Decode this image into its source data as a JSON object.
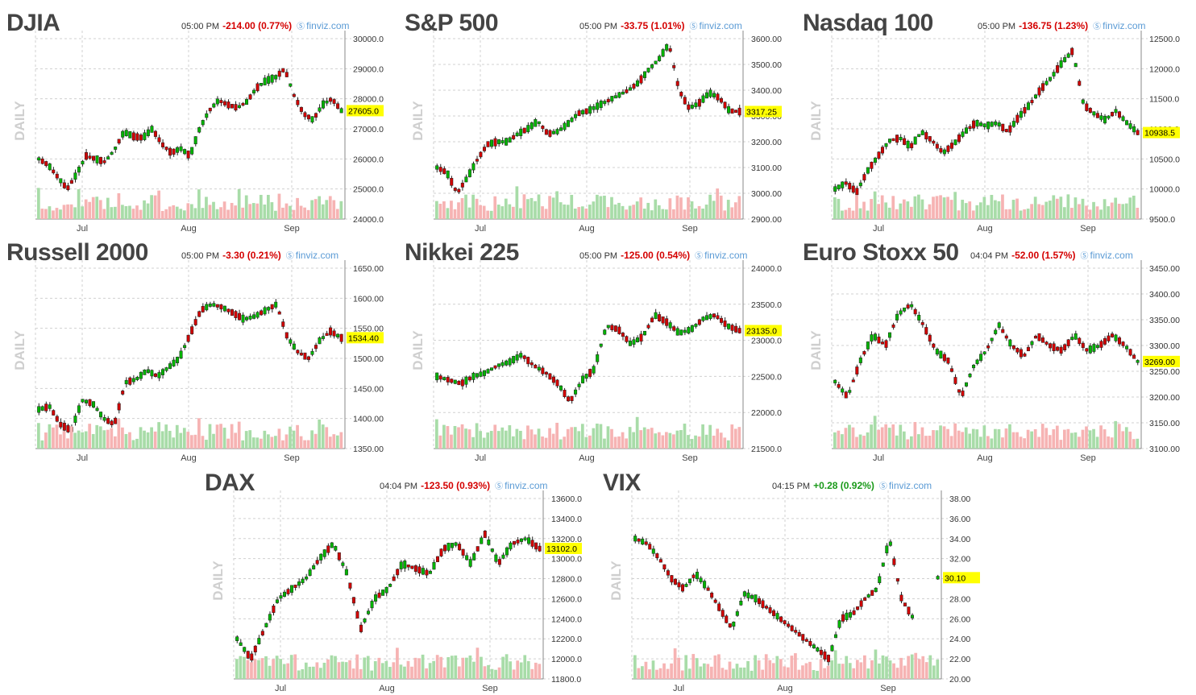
{
  "colors": {
    "up": "#00b400",
    "down": "#d00000",
    "vol_up": "#a8dca8",
    "vol_down": "#f6b3b3",
    "grid": "#d0d0d0",
    "axis": "#444444",
    "price_tag": "#ffff00"
  },
  "brand": "finviz.com",
  "period_label": "DAILY",
  "months": [
    "Jul",
    "Aug",
    "Sep"
  ],
  "panels": [
    {
      "key": "djia",
      "name": "DJIA",
      "time": "05:00 PM",
      "change": "-214.00 (0.77%)",
      "dir": "neg",
      "chart_data": {
        "type": "candlestick",
        "ylim": [
          24000,
          30000
        ],
        "yticks": [
          "30000.0",
          "29000.0",
          "28000.0",
          "27000.0",
          "26000.0",
          "25000.0",
          "24000.0"
        ],
        "last_label": "27605.0",
        "last": 27605,
        "path": [
          26000,
          25800,
          25400,
          25000,
          25500,
          26100,
          26000,
          25900,
          26300,
          26900,
          26750,
          26700,
          27000,
          26500,
          26200,
          26350,
          26100,
          27000,
          27600,
          27950,
          27800,
          27700,
          27900,
          28350,
          28600,
          28700,
          29000,
          28100,
          27500,
          27300,
          27800,
          28000,
          27605
        ]
      }
    },
    {
      "key": "sp500",
      "name": "S&P 500",
      "time": "05:00 PM",
      "change": "-33.75 (1.01%)",
      "dir": "neg",
      "chart_data": {
        "type": "candlestick",
        "ylim": [
          2900,
          3600
        ],
        "yticks": [
          "3600.00",
          "3500.00",
          "3400.00",
          "3300.00",
          "3200.00",
          "3100.00",
          "3000.00",
          "2900.00"
        ],
        "last_label": "3317.25",
        "last": 3317.25,
        "path": [
          3100,
          3080,
          3000,
          3060,
          3130,
          3190,
          3200,
          3200,
          3230,
          3250,
          3280,
          3230,
          3240,
          3270,
          3310,
          3320,
          3340,
          3360,
          3380,
          3400,
          3430,
          3480,
          3520,
          3580,
          3400,
          3330,
          3350,
          3390,
          3370,
          3320,
          3317
        ]
      }
    },
    {
      "key": "ndx",
      "name": "Nasdaq 100",
      "time": "05:00 PM",
      "change": "-136.75 (1.23%)",
      "dir": "neg",
      "chart_data": {
        "type": "candlestick",
        "ylim": [
          9500,
          12500
        ],
        "yticks": [
          "12500.0",
          "12000.0",
          "11500.0",
          "11000.0",
          "10500.0",
          "10000.0",
          "9500.0"
        ],
        "last_label": "10938.5",
        "last": 10938.5,
        "path": [
          10000,
          10100,
          9950,
          10300,
          10550,
          10800,
          10850,
          10700,
          10950,
          10800,
          10600,
          10750,
          10950,
          11100,
          11050,
          11100,
          10950,
          11200,
          11400,
          11650,
          11850,
          12100,
          12300,
          11400,
          11250,
          11150,
          11300,
          11100,
          10938
        ]
      }
    },
    {
      "key": "rut",
      "name": "Russell 2000",
      "time": "05:00 PM",
      "change": "-3.30 (0.21%)",
      "dir": "neg",
      "chart_data": {
        "type": "candlestick",
        "ylim": [
          1350,
          1650
        ],
        "yticks": [
          "1650.00",
          "1600.00",
          "1550.00",
          "1500.00",
          "1450.00",
          "1400.00",
          "1350.00"
        ],
        "last_label": "1534.40",
        "last": 1534.4,
        "path": [
          1415,
          1420,
          1390,
          1380,
          1430,
          1425,
          1400,
          1390,
          1460,
          1465,
          1480,
          1470,
          1485,
          1500,
          1540,
          1580,
          1590,
          1585,
          1575,
          1565,
          1570,
          1580,
          1590,
          1535,
          1510,
          1500,
          1530,
          1545,
          1534
        ]
      }
    },
    {
      "key": "nikkei",
      "name": "Nikkei 225",
      "time": "05:00 PM",
      "change": "-125.00 (0.54%)",
      "dir": "neg",
      "chart_data": {
        "type": "candlestick",
        "ylim": [
          21500,
          24000
        ],
        "yticks": [
          "24000.0",
          "23500.0",
          "23000.0",
          "22500.0",
          "22000.0",
          "21500.0"
        ],
        "last_label": "23135.0",
        "last": 23135,
        "path": [
          22500,
          22450,
          22400,
          22500,
          22550,
          22650,
          22700,
          22800,
          22650,
          22550,
          22400,
          22150,
          22450,
          22600,
          23200,
          23150,
          22950,
          23050,
          23350,
          23250,
          23100,
          23150,
          23300,
          23350,
          23200,
          23135
        ]
      }
    },
    {
      "key": "stoxx",
      "name": "Euro Stoxx 50",
      "time": "04:04 PM",
      "change": "-52.00 (1.57%)",
      "dir": "neg",
      "chart_data": {
        "type": "candlestick",
        "ylim": [
          3100,
          3450
        ],
        "yticks": [
          "3450.00",
          "3400.00",
          "3350.00",
          "3300.00",
          "3250.00",
          "3200.00",
          "3150.00",
          "3100.00"
        ],
        "last_label": "3269.00",
        "last": 3269,
        "path": [
          3230,
          3200,
          3270,
          3320,
          3300,
          3360,
          3380,
          3340,
          3290,
          3270,
          3200,
          3260,
          3290,
          3340,
          3300,
          3280,
          3320,
          3300,
          3290,
          3320,
          3290,
          3300,
          3320,
          3300,
          3269
        ]
      }
    },
    {
      "key": "dax",
      "name": "DAX",
      "time": "04:04 PM",
      "change": "-123.50 (0.93%)",
      "dir": "neg",
      "chart_data": {
        "type": "candlestick",
        "ylim": [
          11800,
          13600
        ],
        "yticks": [
          "13600.0",
          "13400.0",
          "13200.0",
          "13000.0",
          "12800.0",
          "12600.0",
          "12400.0",
          "12200.0",
          "12000.0",
          "11800.0"
        ],
        "last_label": "13102.0",
        "last": 13102,
        "path": [
          12200,
          12000,
          12300,
          12600,
          12700,
          12800,
          13000,
          13150,
          12850,
          12300,
          12600,
          12700,
          12950,
          12900,
          12850,
          13100,
          13150,
          12950,
          13250,
          12950,
          13150,
          13200,
          13100
        ]
      }
    },
    {
      "key": "vix",
      "name": "VIX",
      "time": "04:15 PM",
      "change": "+0.28 (0.92%)",
      "dir": "pos",
      "chart_data": {
        "type": "candlestick",
        "ylim": [
          20,
          38
        ],
        "yticks": [
          "38.00",
          "36.00",
          "34.00",
          "32.00",
          "30.00",
          "28.00",
          "26.00",
          "24.00",
          "22.00",
          "20.00"
        ],
        "last_label": "30.10",
        "last": 30.1,
        "path": [
          34,
          33.5,
          32,
          30,
          29,
          30.5,
          29,
          27,
          25,
          28.5,
          28,
          27,
          26,
          25,
          24,
          23,
          22,
          26,
          26.5,
          28,
          29,
          34,
          28,
          26,
          null,
          30.1
        ]
      }
    }
  ]
}
